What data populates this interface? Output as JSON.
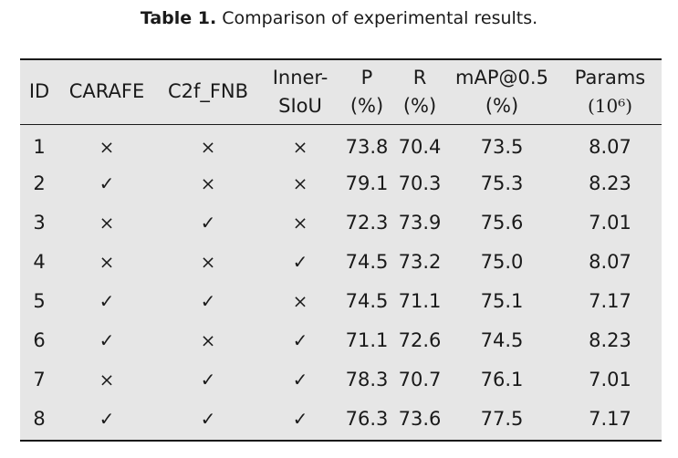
{
  "caption": {
    "label": "Table 1.",
    "text": "Comparison of experimental results."
  },
  "table": {
    "headers": [
      {
        "line1": "ID",
        "line2": ""
      },
      {
        "line1": "CARAFE",
        "line2": ""
      },
      {
        "line1": "C2f_FNB",
        "line2": ""
      },
      {
        "line1": "Inner-",
        "line2": "SIoU"
      },
      {
        "line1": "P",
        "line2": "(%)"
      },
      {
        "line1": "R",
        "line2": "(%)"
      },
      {
        "line1": "mAP@0.5",
        "line2": "(%)"
      },
      {
        "line1": "Params",
        "line2": "(10⁶)"
      }
    ],
    "rows": [
      {
        "id": "1",
        "carafe": "×",
        "c2f_fnb": "×",
        "inner_siou": "×",
        "p": "73.8",
        "r": "70.4",
        "map": "73.5",
        "params": "8.07"
      },
      {
        "id": "2",
        "carafe": "✓",
        "c2f_fnb": "×",
        "inner_siou": "×",
        "p": "79.1",
        "r": "70.3",
        "map": "75.3",
        "params": "8.23"
      },
      {
        "id": "3",
        "carafe": "×",
        "c2f_fnb": "✓",
        "inner_siou": "×",
        "p": "72.3",
        "r": "73.9",
        "map": "75.6",
        "params": "7.01"
      },
      {
        "id": "4",
        "carafe": "×",
        "c2f_fnb": "×",
        "inner_siou": "✓",
        "p": "74.5",
        "r": "73.2",
        "map": "75.0",
        "params": "8.07"
      },
      {
        "id": "5",
        "carafe": "✓",
        "c2f_fnb": "✓",
        "inner_siou": "×",
        "p": "74.5",
        "r": "71.1",
        "map": "75.1",
        "params": "7.17"
      },
      {
        "id": "6",
        "carafe": "✓",
        "c2f_fnb": "×",
        "inner_siou": "✓",
        "p": "71.1",
        "r": "72.6",
        "map": "74.5",
        "params": "8.23"
      },
      {
        "id": "7",
        "carafe": "×",
        "c2f_fnb": "✓",
        "inner_siou": "✓",
        "p": "78.3",
        "r": "70.7",
        "map": "76.1",
        "params": "7.01"
      },
      {
        "id": "8",
        "carafe": "✓",
        "c2f_fnb": "✓",
        "inner_siou": "✓",
        "p": "76.3",
        "r": "73.6",
        "map": "77.5",
        "params": "7.17"
      }
    ]
  }
}
